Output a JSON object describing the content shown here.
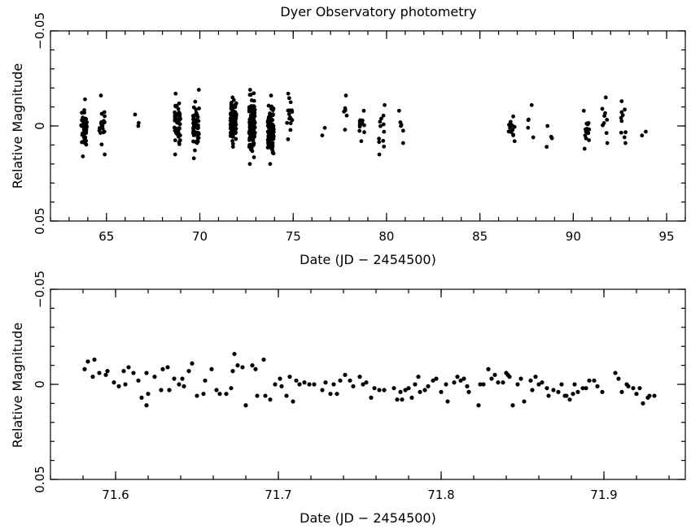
{
  "chart_data": [
    {
      "type": "scatter",
      "title": "Dyer Observatory photometry",
      "xlabel": "Date (JD − 2454500)",
      "ylabel": "Relative Magnitude",
      "xlim": [
        62,
        96
      ],
      "ylim": [
        -0.05,
        0.05
      ],
      "x_ticks": [
        65,
        70,
        75,
        80,
        85,
        90,
        95
      ],
      "y_ticks": [
        -0.05,
        0,
        0.05
      ],
      "x_tick_labels": [
        "65",
        "70",
        "75",
        "80",
        "85",
        "90",
        "95"
      ],
      "y_tick_labels": [
        "−0.05",
        "0",
        "0.05"
      ],
      "grid": false,
      "y_inverted": true,
      "nightly_clusters": [
        {
          "x": 63.8,
          "y_min": -0.014,
          "y_max": 0.016,
          "n": 45
        },
        {
          "x": 64.75,
          "y_min": -0.016,
          "y_max": 0.015,
          "n": 18
        },
        {
          "x": 66.6,
          "y_min": -0.006,
          "y_max": 0.0,
          "n": 3
        },
        {
          "x": 68.8,
          "y_min": -0.017,
          "y_max": 0.015,
          "n": 50
        },
        {
          "x": 69.8,
          "y_min": -0.019,
          "y_max": 0.017,
          "n": 55
        },
        {
          "x": 71.8,
          "y_min": -0.015,
          "y_max": 0.011,
          "n": 110
        },
        {
          "x": 72.8,
          "y_min": -0.019,
          "y_max": 0.02,
          "n": 120
        },
        {
          "x": 73.8,
          "y_min": -0.016,
          "y_max": 0.02,
          "n": 90
        },
        {
          "x": 74.8,
          "y_min": -0.017,
          "y_max": 0.007,
          "n": 16
        },
        {
          "x": 76.6,
          "y_min": 0.001,
          "y_max": 0.005,
          "n": 2
        },
        {
          "x": 77.75,
          "y_min": -0.016,
          "y_max": 0.002,
          "n": 6
        },
        {
          "x": 78.7,
          "y_min": -0.008,
          "y_max": 0.008,
          "n": 14
        },
        {
          "x": 79.75,
          "y_min": -0.011,
          "y_max": 0.015,
          "n": 12
        },
        {
          "x": 80.75,
          "y_min": -0.008,
          "y_max": 0.009,
          "n": 6
        },
        {
          "x": 86.7,
          "y_min": -0.005,
          "y_max": 0.008,
          "n": 14
        },
        {
          "x": 87.7,
          "y_min": -0.011,
          "y_max": 0.006,
          "n": 5
        },
        {
          "x": 88.7,
          "y_min": 0.0,
          "y_max": 0.011,
          "n": 4
        },
        {
          "x": 90.7,
          "y_min": -0.008,
          "y_max": 0.012,
          "n": 14
        },
        {
          "x": 91.7,
          "y_min": -0.015,
          "y_max": 0.009,
          "n": 9
        },
        {
          "x": 92.7,
          "y_min": -0.013,
          "y_max": 0.009,
          "n": 10
        },
        {
          "x": 93.8,
          "y_min": 0.003,
          "y_max": 0.005,
          "n": 2
        }
      ]
    },
    {
      "type": "scatter",
      "title": "",
      "xlabel": "Date (JD − 2454500)",
      "ylabel": "Relative Magnitude",
      "xlim": [
        71.56,
        71.95
      ],
      "ylim": [
        -0.05,
        0.05
      ],
      "x_ticks": [
        71.6,
        71.7,
        71.8,
        71.9
      ],
      "y_ticks": [
        -0.05,
        0,
        0.05
      ],
      "x_tick_labels": [
        "71.6",
        "71.7",
        "71.8",
        "71.9"
      ],
      "y_tick_labels": [
        "−0.05",
        "0",
        "0.05"
      ],
      "grid": false,
      "y_inverted": true,
      "points": [
        [
          71.581,
          -0.008
        ],
        [
          71.583,
          -0.012
        ],
        [
          71.587,
          -0.013
        ],
        [
          71.586,
          -0.004
        ],
        [
          71.59,
          -0.006
        ],
        [
          71.594,
          -0.005
        ],
        [
          71.595,
          -0.007
        ],
        [
          71.599,
          -0.001
        ],
        [
          71.602,
          0.001
        ],
        [
          71.605,
          -0.007
        ],
        [
          71.606,
          0.0
        ],
        [
          71.608,
          -0.009
        ],
        [
          71.611,
          -0.006
        ],
        [
          71.614,
          -0.002
        ],
        [
          71.616,
          0.007
        ],
        [
          71.619,
          0.011
        ],
        [
          71.62,
          0.005
        ],
        [
          71.619,
          -0.006
        ],
        [
          71.624,
          -0.004
        ],
        [
          71.628,
          0.003
        ],
        [
          71.629,
          -0.008
        ],
        [
          71.632,
          -0.009
        ],
        [
          71.633,
          0.003
        ],
        [
          71.636,
          -0.003
        ],
        [
          71.639,
          0.0
        ],
        [
          71.641,
          -0.003
        ],
        [
          71.642,
          0.001
        ],
        [
          71.645,
          -0.007
        ],
        [
          71.647,
          -0.011
        ],
        [
          71.65,
          0.006
        ],
        [
          71.654,
          0.005
        ],
        [
          71.655,
          -0.002
        ],
        [
          71.659,
          -0.008
        ],
        [
          71.662,
          0.003
        ],
        [
          71.664,
          0.005
        ],
        [
          71.668,
          0.005
        ],
        [
          71.671,
          0.002
        ],
        [
          71.672,
          -0.007
        ],
        [
          71.673,
          -0.016
        ],
        [
          71.675,
          -0.01
        ],
        [
          71.678,
          -0.009
        ],
        [
          71.68,
          0.011
        ],
        [
          71.684,
          -0.01
        ],
        [
          71.686,
          -0.008
        ],
        [
          71.687,
          0.006
        ],
        [
          71.691,
          -0.013
        ],
        [
          71.692,
          0.006
        ],
        [
          71.695,
          0.008
        ],
        [
          71.698,
          0.0
        ],
        [
          71.701,
          -0.003
        ],
        [
          71.702,
          0.001
        ],
        [
          71.705,
          0.006
        ],
        [
          71.707,
          -0.004
        ],
        [
          71.709,
          0.009
        ],
        [
          71.711,
          -0.002
        ],
        [
          71.713,
          0.0
        ],
        [
          71.716,
          -0.001
        ],
        [
          71.719,
          0.0
        ],
        [
          71.722,
          0.0
        ],
        [
          71.727,
          0.003
        ],
        [
          71.729,
          -0.001
        ],
        [
          71.732,
          0.005
        ],
        [
          71.734,
          0.0
        ],
        [
          71.736,
          0.005
        ],
        [
          71.738,
          -0.002
        ],
        [
          71.741,
          -0.005
        ],
        [
          71.744,
          -0.002
        ],
        [
          71.746,
          0.001
        ],
        [
          71.75,
          -0.004
        ],
        [
          71.752,
          0.0
        ],
        [
          71.754,
          -0.001
        ],
        [
          71.757,
          0.007
        ],
        [
          71.759,
          0.002
        ],
        [
          71.762,
          0.003
        ],
        [
          71.765,
          0.003
        ],
        [
          71.771,
          0.002
        ],
        [
          71.773,
          0.008
        ],
        [
          71.775,
          0.004
        ],
        [
          71.776,
          0.008
        ],
        [
          71.778,
          0.003
        ],
        [
          71.78,
          0.002
        ],
        [
          71.782,
          0.007
        ],
        [
          71.784,
          0.0
        ],
        [
          71.786,
          -0.004
        ],
        [
          71.787,
          0.004
        ],
        [
          71.79,
          0.003
        ],
        [
          71.792,
          0.001
        ],
        [
          71.795,
          -0.002
        ],
        [
          71.797,
          -0.003
        ],
        [
          71.8,
          0.004
        ],
        [
          71.803,
          0.0
        ],
        [
          71.804,
          0.009
        ],
        [
          71.808,
          -0.001
        ],
        [
          71.81,
          -0.004
        ],
        [
          71.812,
          -0.002
        ],
        [
          71.814,
          -0.003
        ],
        [
          71.816,
          0.001
        ],
        [
          71.817,
          0.004
        ],
        [
          71.823,
          0.011
        ],
        [
          71.824,
          0.0
        ],
        [
          71.826,
          0.0
        ],
        [
          71.829,
          -0.008
        ],
        [
          71.831,
          -0.003
        ],
        [
          71.833,
          -0.005
        ],
        [
          71.835,
          -0.001
        ],
        [
          71.838,
          -0.001
        ],
        [
          71.84,
          -0.006
        ],
        [
          71.841,
          -0.005
        ],
        [
          71.842,
          -0.004
        ],
        [
          71.844,
          0.011
        ],
        [
          71.847,
          0.0
        ],
        [
          71.849,
          -0.003
        ],
        [
          71.851,
          0.009
        ],
        [
          71.855,
          -0.002
        ],
        [
          71.856,
          0.003
        ],
        [
          71.858,
          -0.004
        ],
        [
          71.86,
          0.0
        ],
        [
          71.862,
          -0.001
        ],
        [
          71.865,
          0.002
        ],
        [
          71.866,
          0.006
        ],
        [
          71.869,
          0.003
        ],
        [
          71.872,
          0.004
        ],
        [
          71.874,
          0.0
        ],
        [
          71.876,
          0.006
        ],
        [
          71.877,
          0.006
        ],
        [
          71.879,
          0.008
        ],
        [
          71.881,
          0.005
        ],
        [
          71.882,
          0.0
        ],
        [
          71.884,
          0.004
        ],
        [
          71.887,
          0.002
        ],
        [
          71.889,
          0.002
        ],
        [
          71.891,
          -0.002
        ],
        [
          71.894,
          -0.002
        ],
        [
          71.896,
          0.001
        ],
        [
          71.899,
          0.004
        ],
        [
          71.907,
          -0.006
        ],
        [
          71.909,
          -0.003
        ],
        [
          71.911,
          0.004
        ],
        [
          71.914,
          0.0
        ],
        [
          71.915,
          0.001
        ],
        [
          71.918,
          0.002
        ],
        [
          71.92,
          0.005
        ],
        [
          71.922,
          0.002
        ],
        [
          71.924,
          0.01
        ],
        [
          71.927,
          0.007
        ],
        [
          71.928,
          0.006
        ],
        [
          71.931,
          0.006
        ]
      ]
    }
  ]
}
